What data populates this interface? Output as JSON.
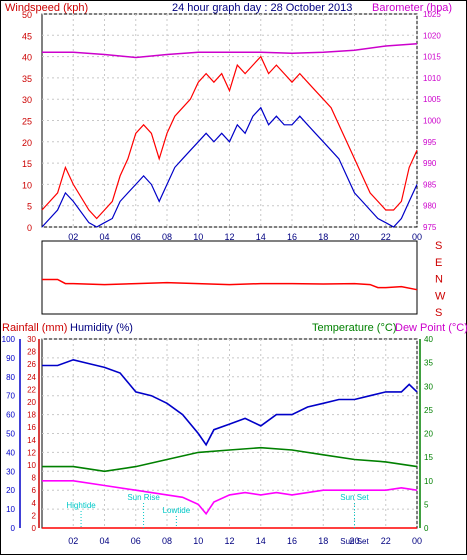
{
  "header": {
    "left_title": "Windspeed (kph)",
    "center_title": "24 hour graph day : 28 October 2013",
    "right_title": "Barometer (hpa)"
  },
  "colors": {
    "background": "#ffffff",
    "frame": "#000000",
    "grid": "#c8c8c8",
    "wind": "#ff0000",
    "gust": "#ff0000",
    "wind_avg": "#0000c8",
    "barometer": "#cc00cc",
    "direction": "#ff0000",
    "humidity": "#0000c8",
    "temperature": "#008000",
    "dewpoint": "#ff00ff",
    "rainfall": "#ff0000",
    "tide_text": "#00c8c8"
  },
  "chart_data": [
    {
      "id": "wind",
      "type": "line",
      "title": "24 hour graph day : 28 October 2013",
      "ylabel_left": "Windspeed (kph)",
      "ylabel_right": "Barometer (hpa)",
      "x_ticks": [
        "02",
        "04",
        "06",
        "08",
        "10",
        "12",
        "14",
        "16",
        "18",
        "20",
        "22",
        "00"
      ],
      "y_left_ticks": [
        0,
        5,
        10,
        15,
        20,
        25,
        30,
        35,
        40,
        45,
        50
      ],
      "y_left_range": [
        0,
        50
      ],
      "y_right_ticks": [
        975,
        980,
        985,
        990,
        995,
        1000,
        1005,
        1010,
        1015,
        1020,
        1025
      ],
      "y_right_range": [
        975,
        1025
      ],
      "x_range_hours": [
        0,
        24
      ],
      "grid": true,
      "series": [
        {
          "name": "Gust",
          "axis": "left",
          "x": [
            0,
            1,
            1.5,
            2,
            3,
            3.5,
            4,
            4.5,
            5,
            5.5,
            6,
            6.5,
            7,
            7.5,
            8,
            8.5,
            9,
            9.5,
            10,
            10.5,
            11,
            11.5,
            12,
            12.5,
            13,
            13.5,
            14,
            14.5,
            15,
            15.5,
            16,
            16.5,
            17,
            17.5,
            18,
            18.5,
            19,
            19.5,
            20,
            20.5,
            21,
            21.5,
            22,
            22.5,
            23,
            23.5,
            24
          ],
          "values": [
            4,
            8,
            14,
            10,
            4,
            2,
            4,
            6,
            12,
            16,
            22,
            24,
            22,
            16,
            22,
            26,
            28,
            30,
            34,
            36,
            34,
            36,
            32,
            38,
            36,
            38,
            40,
            36,
            38,
            36,
            34,
            36,
            34,
            32,
            30,
            28,
            24,
            20,
            16,
            12,
            8,
            6,
            4,
            4,
            6,
            14,
            18
          ]
        },
        {
          "name": "Average",
          "axis": "left",
          "x": [
            0,
            1,
            1.5,
            2,
            3,
            3.5,
            4,
            4.5,
            5,
            5.5,
            6,
            6.5,
            7,
            7.5,
            8,
            8.5,
            9,
            9.5,
            10,
            10.5,
            11,
            11.5,
            12,
            12.5,
            13,
            13.5,
            14,
            14.5,
            15,
            15.5,
            16,
            16.5,
            17,
            17.5,
            18,
            18.5,
            19,
            19.5,
            20,
            20.5,
            21,
            21.5,
            22,
            22.5,
            23,
            23.5,
            24
          ],
          "values": [
            0,
            4,
            8,
            6,
            1,
            0,
            1,
            2,
            6,
            8,
            10,
            12,
            10,
            6,
            10,
            14,
            16,
            18,
            20,
            22,
            20,
            22,
            20,
            24,
            22,
            26,
            28,
            24,
            26,
            24,
            24,
            26,
            24,
            22,
            20,
            18,
            16,
            12,
            8,
            6,
            4,
            2,
            1,
            0,
            2,
            6,
            10
          ]
        },
        {
          "name": "Barometer",
          "axis": "right",
          "x": [
            0,
            2,
            4,
            6,
            8,
            10,
            12,
            14,
            16,
            18,
            20,
            22,
            24
          ],
          "values": [
            1016,
            1016,
            1015.5,
            1014.8,
            1015.5,
            1016,
            1016,
            1016,
            1015.8,
            1016,
            1016.5,
            1017.5,
            1018
          ]
        }
      ]
    },
    {
      "id": "direction",
      "type": "line",
      "y_ticks": [
        "S",
        "E",
        "N",
        "W",
        "S"
      ],
      "y_range_degrees": [
        0,
        360
      ],
      "x_range_hours": [
        0,
        24
      ],
      "series": [
        {
          "name": "Direction",
          "x": [
            0,
            1,
            1.5,
            2,
            4,
            6,
            8,
            10,
            12,
            14,
            16,
            18,
            20,
            21,
            21.5,
            22,
            23,
            24
          ],
          "values": [
            190,
            190,
            210,
            210,
            215,
            210,
            205,
            210,
            215,
            210,
            210,
            212,
            210,
            215,
            230,
            230,
            225,
            240
          ]
        }
      ]
    },
    {
      "id": "climate",
      "type": "line",
      "ylabel_left": "Rainfall (mm)",
      "ylabel_left2": "Humidity (%)",
      "ylabel_right": "Temperature (°C)",
      "ylabel_right2": "Dew Point (°C)",
      "x_ticks": [
        "02",
        "04",
        "06",
        "08",
        "10",
        "12",
        "14",
        "16",
        "18",
        "20",
        "22",
        "00"
      ],
      "humidity_ticks": [
        0,
        10,
        20,
        30,
        40,
        50,
        60,
        70,
        80,
        90,
        100
      ],
      "humidity_range": [
        0,
        100
      ],
      "rain_ticks": [
        0,
        2,
        4,
        6,
        8,
        10,
        12,
        14,
        16,
        18,
        20,
        22,
        24,
        26,
        28,
        30
      ],
      "rain_range": [
        0,
        30
      ],
      "temp_ticks": [
        0,
        5,
        10,
        15,
        20,
        25,
        30,
        35,
        40
      ],
      "temp_range": [
        0,
        40
      ],
      "x_range_hours": [
        0,
        24
      ],
      "grid": true,
      "annotations": [
        {
          "label": "Hightide",
          "x": 2.5
        },
        {
          "label": "Sun Rise",
          "x": 6.5
        },
        {
          "label": "Lowtide",
          "x": 8.6
        },
        {
          "label": "Sun Set",
          "x": 20
        },
        {
          "label": "Sun Set",
          "x": 20
        }
      ],
      "series": [
        {
          "name": "Humidity",
          "axis": "humidity",
          "x": [
            0,
            1,
            2,
            3,
            4,
            5,
            6,
            7,
            8,
            9,
            10,
            10.5,
            11,
            12,
            13,
            14,
            15,
            16,
            17,
            18,
            19,
            20,
            21,
            22,
            23,
            23.5,
            24
          ],
          "values": [
            86,
            86,
            89,
            87,
            85,
            82,
            72,
            70,
            66,
            60,
            50,
            44,
            52,
            55,
            58,
            54,
            60,
            60,
            64,
            66,
            68,
            68,
            70,
            72,
            72,
            76,
            72
          ]
        },
        {
          "name": "Temperature",
          "axis": "temp",
          "x": [
            0,
            2,
            4,
            6,
            8,
            10,
            12,
            14,
            16,
            18,
            20,
            22,
            24
          ],
          "values": [
            13,
            13,
            12,
            13,
            14.5,
            16,
            16.5,
            17,
            16.5,
            15.5,
            14.5,
            14,
            13
          ]
        },
        {
          "name": "Dew Point",
          "axis": "temp",
          "x": [
            0,
            2,
            4,
            6,
            8,
            9,
            10,
            10.5,
            11,
            12,
            13,
            14,
            15,
            16,
            17,
            18,
            19,
            20,
            22,
            23,
            24
          ],
          "values": [
            10,
            10,
            9,
            8,
            7,
            6.5,
            5,
            3,
            5.5,
            7,
            7.5,
            7,
            7.5,
            7,
            7.5,
            8,
            8,
            8,
            8,
            8.5,
            8
          ]
        },
        {
          "name": "Rainfall",
          "axis": "rain",
          "x": [
            0,
            24
          ],
          "values": [
            0,
            0
          ]
        }
      ]
    }
  ]
}
